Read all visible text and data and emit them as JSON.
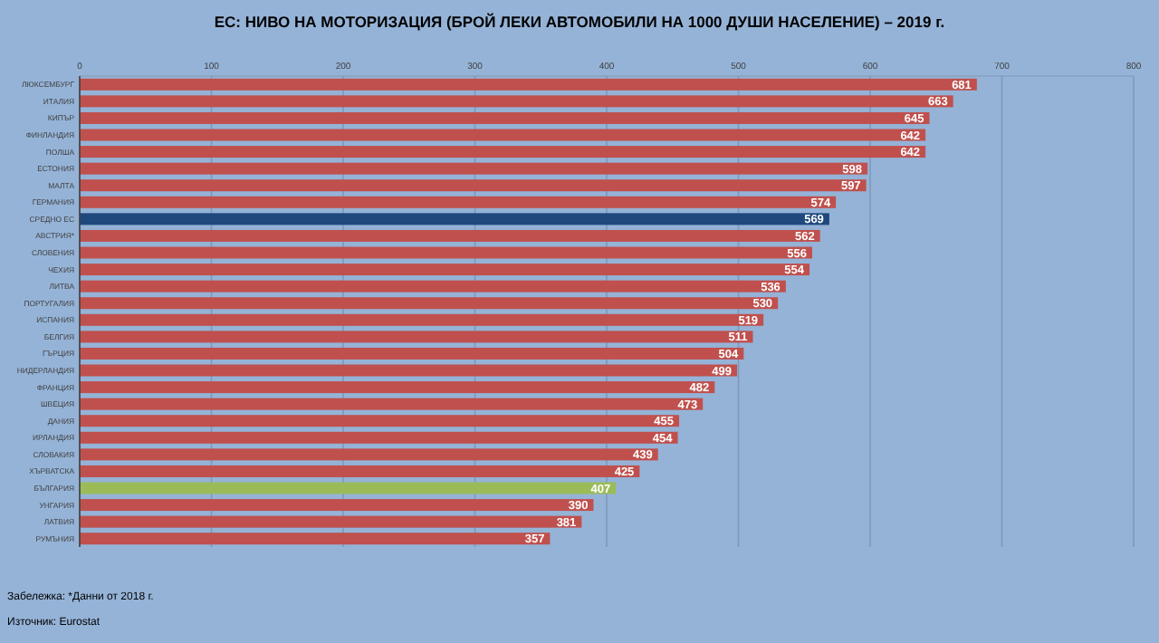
{
  "chart_data": {
    "type": "bar",
    "orientation": "horizontal",
    "title": "ЕС: НИВО НА МОТОРИЗАЦИЯ  (БРОЙ ЛЕКИ АВТОМОБИЛИ  НА  1000 ДУШИ  НАСЕЛЕНИЕ)  – 2019 г.",
    "categories": [
      "ЛЮКСЕМБУРГ",
      "ИТАЛИЯ",
      "КИПЪР",
      "ФИНЛАНДИЯ",
      "ПОЛША",
      "ЕСТОНИЯ",
      "МАЛТА",
      "ГЕРМАНИЯ",
      "СРЕДНО ЕС",
      "АВСТРИЯ*",
      "СЛОВЕНИЯ",
      "ЧЕХИЯ",
      "ЛИТВА",
      "ПОРТУГАЛИЯ",
      "ИСПАНИЯ",
      "БЕЛГИЯ",
      "ГЪРЦИЯ",
      "НИДЕРЛАНДИЯ",
      "ФРАНЦИЯ",
      "ШВЕЦИЯ",
      "ДАНИЯ",
      "ИРЛАНДИЯ",
      "СЛОВАКИЯ",
      "ХЪРВАТСКА",
      "БЪЛГАРИЯ",
      "УНГАРИЯ",
      "ЛАТВИЯ",
      "РУМЪНИЯ"
    ],
    "values": [
      681,
      663,
      645,
      642,
      642,
      598,
      597,
      574,
      569,
      562,
      556,
      554,
      536,
      530,
      519,
      511,
      504,
      499,
      482,
      473,
      455,
      454,
      439,
      425,
      407,
      390,
      381,
      357
    ],
    "colors": [
      "#c0504d",
      "#c0504d",
      "#c0504d",
      "#c0504d",
      "#c0504d",
      "#c0504d",
      "#c0504d",
      "#c0504d",
      "#1f497d",
      "#c0504d",
      "#c0504d",
      "#c0504d",
      "#c0504d",
      "#c0504d",
      "#c0504d",
      "#c0504d",
      "#c0504d",
      "#c0504d",
      "#c0504d",
      "#c0504d",
      "#c0504d",
      "#c0504d",
      "#c0504d",
      "#c0504d",
      "#9bbb59",
      "#c0504d",
      "#c0504d",
      "#c0504d"
    ],
    "xlim": [
      0,
      800
    ],
    "xticks": [
      0,
      100,
      200,
      300,
      400,
      500,
      600,
      700,
      800
    ],
    "grid": "x",
    "data_labels": true,
    "annotations": [
      "Забележка: *Данни от 2018 г.",
      "Източник: Eurostat"
    ]
  }
}
